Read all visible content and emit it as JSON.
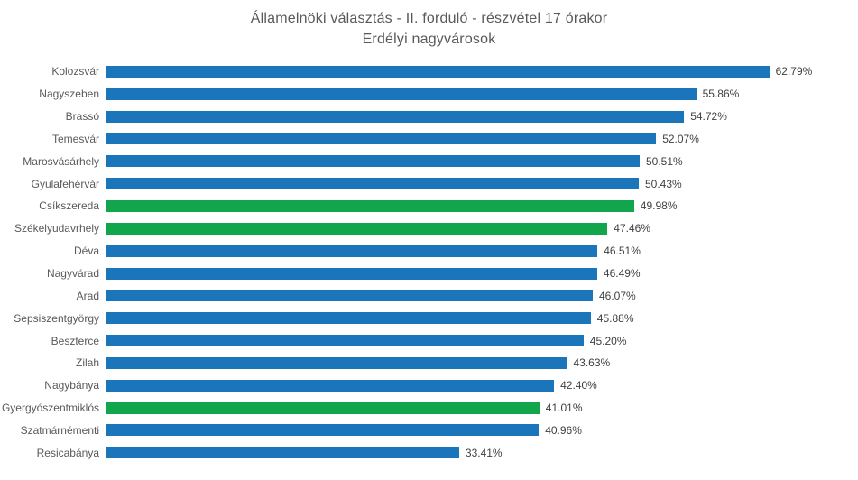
{
  "title": "Államelnöki választás - II. forduló - részvétel 17 órakor",
  "subtitle": "Erdélyi nagyvárosok",
  "chart_data": {
    "type": "bar",
    "orientation": "horizontal",
    "title": "Államelnöki választás - II. forduló - részvétel 17 órakor",
    "subtitle": "Erdélyi nagyvárosok",
    "xlabel": "",
    "ylabel": "",
    "xlim": [
      0,
      63
    ],
    "grid": false,
    "legend": false,
    "value_suffix": "%",
    "bar_color_default": "#1b75bb",
    "bar_color_highlight": "#11a64c",
    "category_label_color": "#595959",
    "value_label_color": "#404040",
    "axis_line_color": "#d9d9d9",
    "categories": [
      "Kolozsvár",
      "Nagyszeben",
      "Brassó",
      "Temesvár",
      "Marosvásárhely",
      "Gyulafehérvár",
      "Csíkszereda",
      "Székelyudavrhely",
      "Déva",
      "Nagyvárad",
      "Arad",
      "Sepsiszentgyörgy",
      "Beszterce",
      "Zilah",
      "Nagybánya",
      "Gyergyószentmiklós",
      "Szatmárnémenti",
      "Resicabánya"
    ],
    "values": [
      62.79,
      55.86,
      54.72,
      52.07,
      50.51,
      50.43,
      49.98,
      47.46,
      46.51,
      46.49,
      46.07,
      45.88,
      45.2,
      43.63,
      42.4,
      41.01,
      40.96,
      33.41
    ],
    "value_labels": [
      "62.79%",
      "55.86%",
      "54.72%",
      "52.07%",
      "50.51%",
      "50.43%",
      "49.98%",
      "47.46%",
      "46.51%",
      "46.49%",
      "46.07%",
      "45.88%",
      "45.20%",
      "43.63%",
      "42.40%",
      "41.01%",
      "40.96%",
      "33.41%"
    ],
    "highlighted": [
      false,
      false,
      false,
      false,
      false,
      false,
      true,
      true,
      false,
      false,
      false,
      false,
      false,
      false,
      false,
      true,
      false,
      false
    ]
  }
}
